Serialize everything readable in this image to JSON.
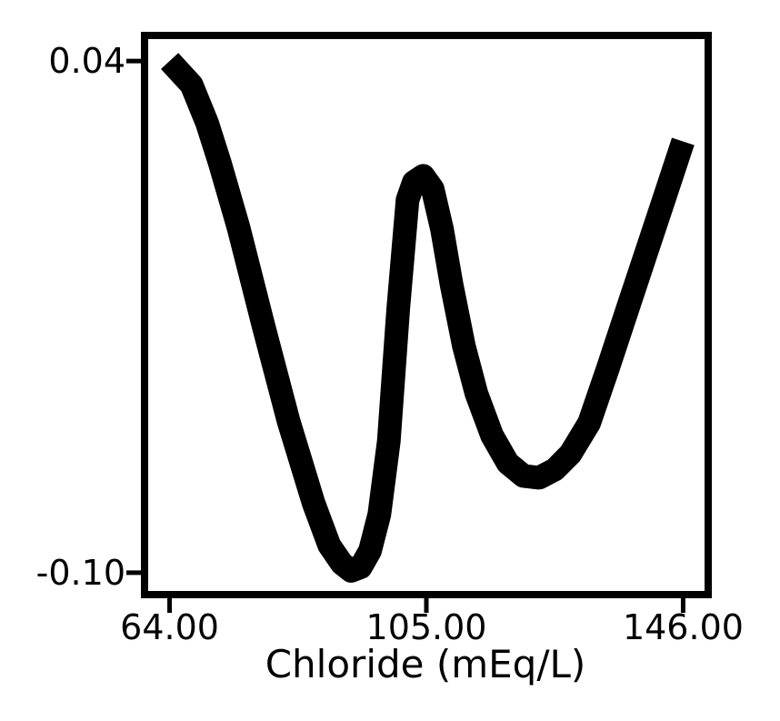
{
  "chart_data": {
    "type": "line",
    "title": "",
    "xlabel": "Chloride (mEq/L)",
    "ylabel": "",
    "xlim": [
      60,
      150
    ],
    "ylim": [
      -0.106,
      0.047
    ],
    "xticks": [
      64,
      105,
      146
    ],
    "xtick_labels": [
      "64.00",
      "105.00",
      "146.00"
    ],
    "yticks": [
      0.04,
      -0.1
    ],
    "ytick_labels": [
      "0.04",
      "-0.10"
    ],
    "grid": false,
    "legend": "none",
    "series": [
      {
        "name": "",
        "color": "#000000",
        "x": [
          64,
          67.5,
          70,
          72,
          75,
          79,
          83,
          87,
          89.5,
          91.5,
          93,
          94.5,
          96,
          97.5,
          99,
          100.5,
          102,
          103,
          104.5,
          106,
          107.5,
          109,
          111,
          113,
          115.5,
          118,
          120.5,
          123,
          125.5,
          128,
          131,
          134,
          137,
          140,
          143,
          146
        ],
        "y": [
          0.04,
          0.0335,
          0.023,
          0.0122,
          -0.0055,
          -0.0325,
          -0.0585,
          -0.081,
          -0.0925,
          -0.0975,
          -0.0995,
          -0.0985,
          -0.094,
          -0.084,
          -0.064,
          -0.028,
          0.002,
          0.0069,
          0.0086,
          0.005,
          -0.006,
          -0.021,
          -0.038,
          -0.051,
          -0.0625,
          -0.07,
          -0.0735,
          -0.074,
          -0.0718,
          -0.0675,
          -0.059,
          -0.044,
          -0.0285,
          -0.013,
          0.0025,
          0.018
        ]
      }
    ]
  }
}
